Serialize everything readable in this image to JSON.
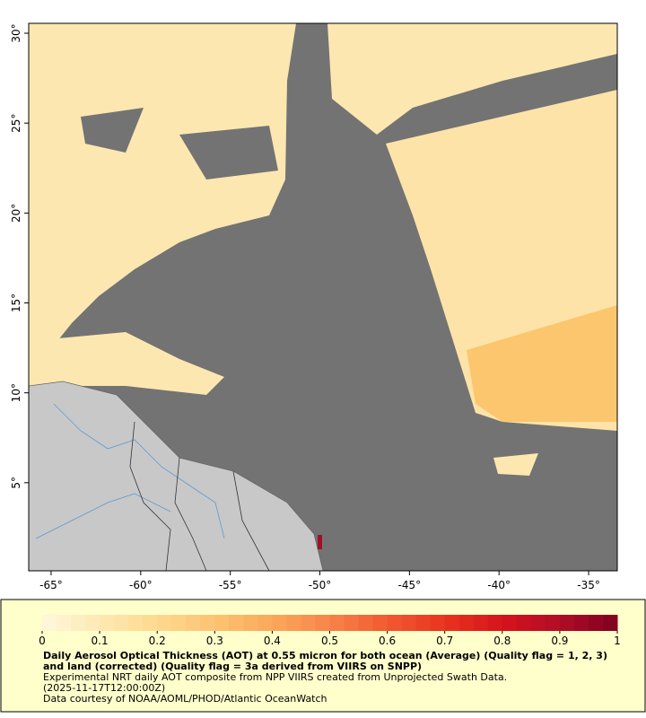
{
  "map": {
    "xlim": [
      -66.25,
      -33.4
    ],
    "ylim": [
      0.1,
      30.55
    ],
    "xticks": [
      {
        "value": -65,
        "label": "-65°"
      },
      {
        "value": -60,
        "label": "-60°"
      },
      {
        "value": -55,
        "label": "-55°"
      },
      {
        "value": -50,
        "label": "-50°"
      },
      {
        "value": -45,
        "label": "-45°"
      },
      {
        "value": -40,
        "label": "-40°"
      },
      {
        "value": -35,
        "label": "-35°"
      }
    ],
    "yticks": [
      {
        "value": 5,
        "label": "5°"
      },
      {
        "value": 10,
        "label": "10°"
      },
      {
        "value": 15,
        "label": "15°"
      },
      {
        "value": 20,
        "label": "20°"
      },
      {
        "value": 25,
        "label": "25°"
      },
      {
        "value": 30,
        "label": "30°"
      }
    ]
  },
  "colorbar": {
    "lim": [
      0,
      1
    ],
    "ticks": [
      0,
      0.1,
      0.2,
      0.3,
      0.4,
      0.5,
      0.6,
      0.7,
      0.8,
      0.9,
      1
    ],
    "colors": [
      "#fff7dc",
      "#fee9b4",
      "#fed98e",
      "#fdc372",
      "#fba85a",
      "#f7844a",
      "#f15a30",
      "#e8341f",
      "#d4141c",
      "#b00d26",
      "#800020"
    ]
  },
  "caption": {
    "title": "Daily Aerosol Optical Thickness (AOT) at 0.55 micron for both ocean (Average) (Quality flag = 1, 2, 3) and land (corrected) (Quality flag = 3a derived from VIIRS on SNPP)",
    "line1": "Experimental NRT daily AOT composite from NPP VIIRS created from Unprojected Swath Data.",
    "line2": "(2025-11-17T12:00:00Z)",
    "line3": "Data courtesy of NOAA/AOML/PHOD/Atlantic OceanWatch"
  }
}
